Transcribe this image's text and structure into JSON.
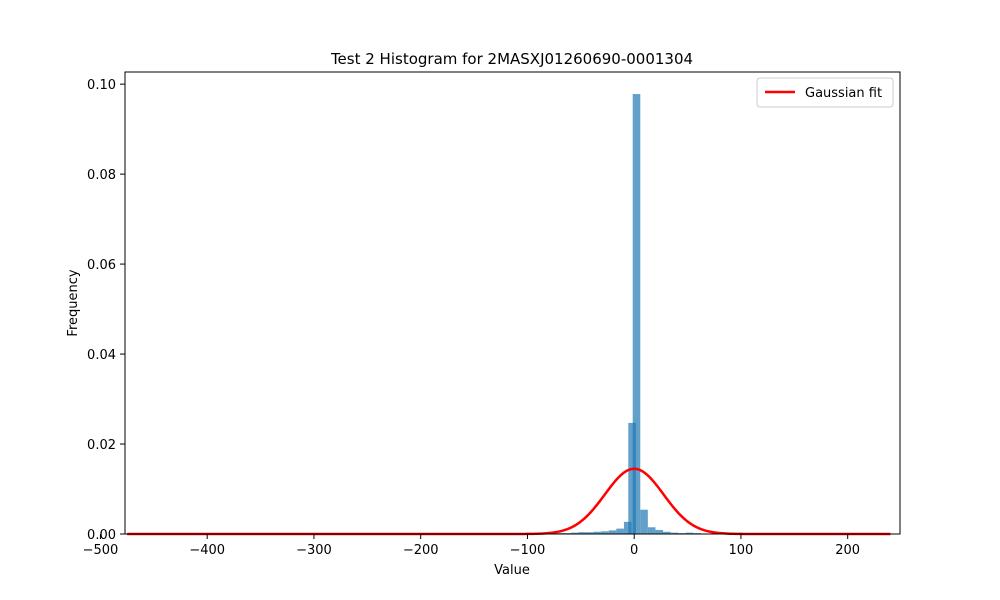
{
  "chart_data": {
    "type": "bar",
    "title": "Test 2 Histogram for 2MASXJ01260690-0001304",
    "xlabel": "Value",
    "ylabel": "Frequency",
    "xlim": [
      -477,
      249
    ],
    "ylim": [
      0,
      0.1027
    ],
    "xticks": [
      -500,
      -400,
      -300,
      -200,
      -100,
      0,
      100,
      200
    ],
    "xtick_labels": [
      "−500",
      "−400",
      "−300",
      "−200",
      "−100",
      "0",
      "100",
      "200"
    ],
    "yticks": [
      0.0,
      0.02,
      0.04,
      0.06,
      0.08,
      0.1
    ],
    "ytick_labels": [
      "0.00",
      "0.02",
      "0.04",
      "0.06",
      "0.08",
      "0.10"
    ],
    "grid": false,
    "legend": "top-right",
    "histogram": {
      "bin_width": 7.1,
      "color": "#1f77b4",
      "alpha": 0.7,
      "bins": [
        {
          "x": -73.5,
          "height": 0.0002
        },
        {
          "x": -66.4,
          "height": 0.0002
        },
        {
          "x": -59.3,
          "height": 0.0003
        },
        {
          "x": -52.2,
          "height": 0.0004
        },
        {
          "x": -45.1,
          "height": 0.0004
        },
        {
          "x": -38.0,
          "height": 0.0005
        },
        {
          "x": -30.9,
          "height": 0.0006
        },
        {
          "x": -23.8,
          "height": 0.0008
        },
        {
          "x": -16.7,
          "height": 0.0012
        },
        {
          "x": -9.6,
          "height": 0.0027
        },
        {
          "x": -5.5,
          "height": 0.0247
        },
        {
          "x": -1.4,
          "height": 0.0978
        },
        {
          "x": 5.7,
          "height": 0.0054
        },
        {
          "x": 12.8,
          "height": 0.0015
        },
        {
          "x": 19.9,
          "height": 0.0009
        },
        {
          "x": 27.0,
          "height": 0.0005
        },
        {
          "x": 34.1,
          "height": 0.0003
        },
        {
          "x": 41.2,
          "height": 0.0002
        },
        {
          "x": 48.3,
          "height": 0.0003
        },
        {
          "x": 55.4,
          "height": 0.0002
        }
      ]
    },
    "series": [
      {
        "name": "Gaussian fit",
        "type": "line",
        "color": "#ff0000",
        "mean": 0.0,
        "sigma": 27.5,
        "amplitude": 0.0145,
        "x_range": [
          -475,
          240
        ]
      }
    ]
  }
}
